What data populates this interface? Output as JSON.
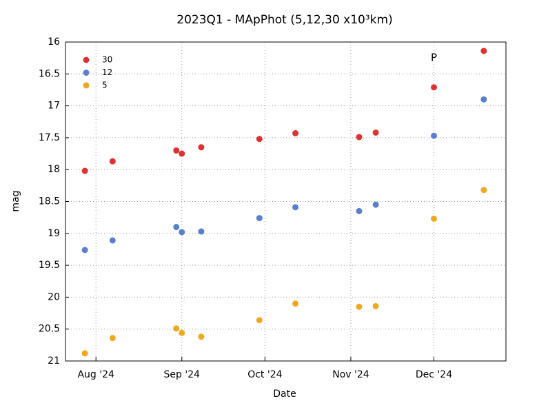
{
  "chart_data": {
    "type": "scatter",
    "title": "2023Q1 - MApPhot (5,12,30 x10³km)",
    "x_label": "Date",
    "y_label": "mag",
    "x": [
      210,
      220,
      243,
      245,
      252,
      273,
      286,
      309,
      315,
      336,
      354
    ],
    "series": [
      {
        "name": "30",
        "color": "#e03131",
        "values": [
          18.02,
          17.87,
          17.7,
          17.75,
          17.65,
          17.52,
          17.43,
          17.49,
          17.42,
          16.71,
          16.14
        ]
      },
      {
        "name": "12",
        "color": "#5b7fcf",
        "values": [
          19.26,
          19.11,
          18.9,
          18.98,
          18.97,
          18.76,
          18.59,
          18.65,
          18.55,
          17.47,
          16.9
        ]
      },
      {
        "name": "5",
        "color": "#f0a820",
        "values": [
          20.88,
          20.64,
          20.49,
          20.56,
          20.62,
          20.36,
          20.1,
          20.15,
          20.14,
          18.77,
          18.32
        ]
      }
    ],
    "xlim": [
      203,
      362
    ],
    "xticks": [
      {
        "value": 214,
        "label": "Aug '24"
      },
      {
        "value": 245,
        "label": "Sep '24"
      },
      {
        "value": 275,
        "label": "Oct '24"
      },
      {
        "value": 306,
        "label": "Nov '24"
      },
      {
        "value": 336,
        "label": "Dec '24"
      }
    ],
    "ylim": [
      16,
      21
    ],
    "y_inverted": true,
    "yticks": [
      16,
      16.5,
      17,
      17.5,
      18,
      18.5,
      19,
      19.5,
      20,
      20.5,
      21
    ],
    "grid": true,
    "legend": "upper-left",
    "annotations": [
      {
        "text": "P",
        "x": 336,
        "y": 16.25
      }
    ]
  }
}
